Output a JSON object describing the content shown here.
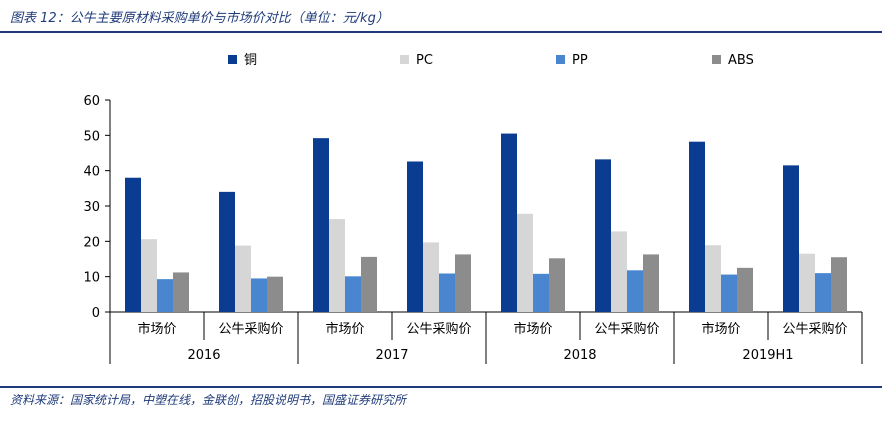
{
  "title": "图表 12：公牛主要原材料采购单价与市场价对比（单位：元/kg）",
  "source": "资料来源：国家统计局，中塑在线，金联创，招股说明书，国盛证券研究所",
  "chart_data": {
    "type": "bar",
    "categories": [
      "市场价",
      "公牛采购价",
      "市场价",
      "公牛采购价",
      "市场价",
      "公牛采购价",
      "市场价",
      "公牛采购价"
    ],
    "groups": [
      "2016",
      "2017",
      "2018",
      "2019H1"
    ],
    "series": [
      {
        "name": "铜",
        "color": "#0a3d91",
        "values": [
          38.0,
          34.0,
          49.2,
          42.6,
          50.5,
          43.2,
          48.2,
          41.5
        ]
      },
      {
        "name": "PC",
        "color": "#d6d6d6",
        "values": [
          20.6,
          18.8,
          26.3,
          19.7,
          27.8,
          22.8,
          18.9,
          16.5
        ]
      },
      {
        "name": "PP",
        "color": "#4a86cf",
        "values": [
          9.3,
          9.5,
          10.1,
          10.9,
          10.8,
          11.8,
          10.6,
          11.0
        ]
      },
      {
        "name": "ABS",
        "color": "#8c8c8c",
        "values": [
          11.2,
          10.0,
          15.6,
          16.3,
          15.2,
          16.3,
          12.5,
          15.5
        ]
      }
    ],
    "yticks": [
      "0",
      "10",
      "20",
      "30",
      "40",
      "50",
      "60"
    ],
    "ylim": [
      0,
      60
    ],
    "legend_position": "top",
    "grid": false
  }
}
